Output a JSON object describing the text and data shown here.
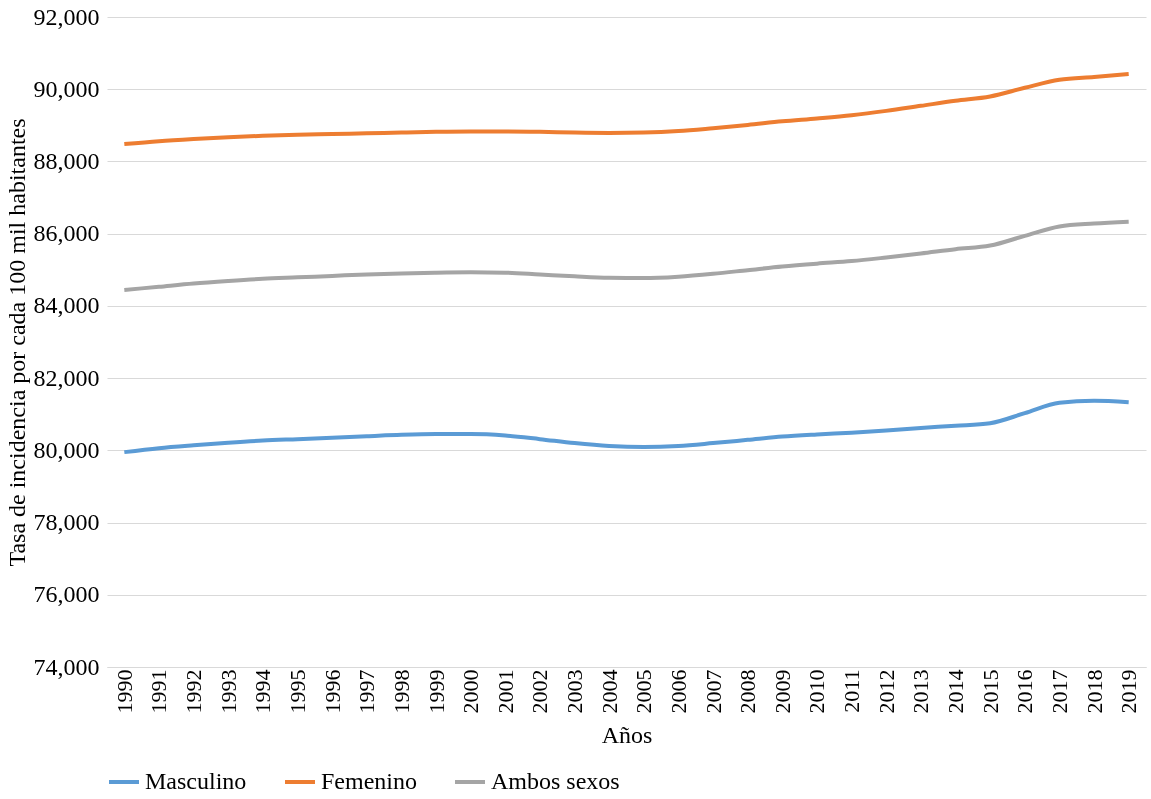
{
  "chart_data": {
    "type": "line",
    "xlabel": "Años",
    "ylabel": "Tasa de incidencia por cada 100 mil habitantes",
    "categories": [
      "1990",
      "1991",
      "1992",
      "1993",
      "1994",
      "1995",
      "1996",
      "1997",
      "1998",
      "1999",
      "2000",
      "2001",
      "2002",
      "2003",
      "2004",
      "2005",
      "2006",
      "2007",
      "2008",
      "2009",
      "2010",
      "2011",
      "2012",
      "2013",
      "2014",
      "2015",
      "2016",
      "2017",
      "2018",
      "2019"
    ],
    "series": [
      {
        "name": "Masculino",
        "color": "#5b9bd5",
        "values": [
          79950,
          80060,
          80140,
          80210,
          80270,
          80310,
          80350,
          80390,
          80430,
          80450,
          80450,
          80410,
          80310,
          80200,
          80120,
          80090,
          80120,
          80200,
          80290,
          80380,
          80440,
          80490,
          80550,
          80620,
          80680,
          80750,
          81030,
          81320,
          81370,
          81330
        ]
      },
      {
        "name": "Femenino",
        "color": "#ed7d31",
        "values": [
          88480,
          88560,
          88620,
          88670,
          88710,
          88740,
          88760,
          88780,
          88800,
          88820,
          88830,
          88830,
          88820,
          88800,
          88790,
          88800,
          88840,
          88920,
          89010,
          89110,
          89190,
          89280,
          89400,
          89540,
          89680,
          89800,
          90040,
          90260,
          90340,
          90420
        ]
      },
      {
        "name": "Ambos sexos",
        "color": "#a5a5a5",
        "values": [
          84440,
          84530,
          84620,
          84690,
          84750,
          84790,
          84830,
          84870,
          84900,
          84920,
          84930,
          84920,
          84870,
          84820,
          84780,
          84770,
          84810,
          84890,
          84990,
          85090,
          85170,
          85240,
          85340,
          85450,
          85570,
          85670,
          85940,
          86200,
          86280,
          86330
        ]
      }
    ],
    "ylim": [
      74000,
      92000
    ],
    "yticks": [
      {
        "value": 74000,
        "label": "74,000"
      },
      {
        "value": 76000,
        "label": "76,000"
      },
      {
        "value": 78000,
        "label": "78,000"
      },
      {
        "value": 80000,
        "label": "80,000"
      },
      {
        "value": 82000,
        "label": "82,000"
      },
      {
        "value": 84000,
        "label": "84,000"
      },
      {
        "value": 86000,
        "label": "86,000"
      },
      {
        "value": 88000,
        "label": "88,000"
      },
      {
        "value": 90000,
        "label": "90,000"
      },
      {
        "value": 92000,
        "label": "92,000"
      }
    ],
    "grid": "y",
    "legend": "bottom",
    "marker": "none",
    "line_style": "solid"
  }
}
